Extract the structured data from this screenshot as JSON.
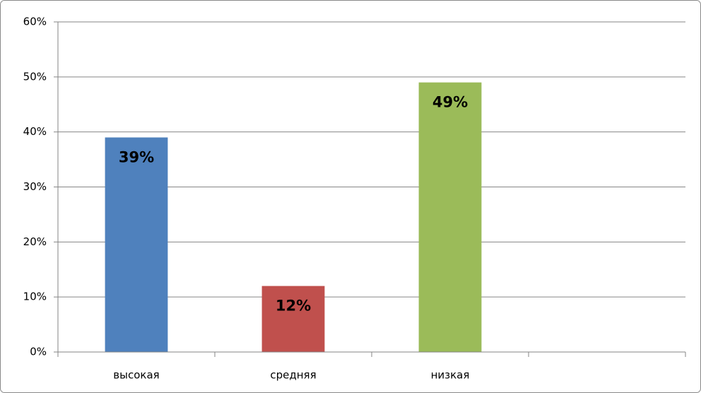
{
  "chart_data": {
    "type": "bar",
    "categories": [
      "высокая",
      "средняя",
      "низкая",
      null
    ],
    "values": [
      39,
      12,
      49,
      null
    ],
    "value_labels": [
      "39%",
      "12%",
      "49%",
      null
    ],
    "colors": [
      "#4f81bd",
      "#c0504d",
      "#9bbb59",
      null
    ],
    "ylim": [
      0,
      60
    ],
    "yticks": [
      {
        "value": 0,
        "label": "0%"
      },
      {
        "value": 10,
        "label": "10%"
      },
      {
        "value": 20,
        "label": "20%"
      },
      {
        "value": 30,
        "label": "30%"
      },
      {
        "value": 40,
        "label": "40%"
      },
      {
        "value": 50,
        "label": "50%"
      },
      {
        "value": 60,
        "label": "60%"
      }
    ],
    "grid": true
  }
}
